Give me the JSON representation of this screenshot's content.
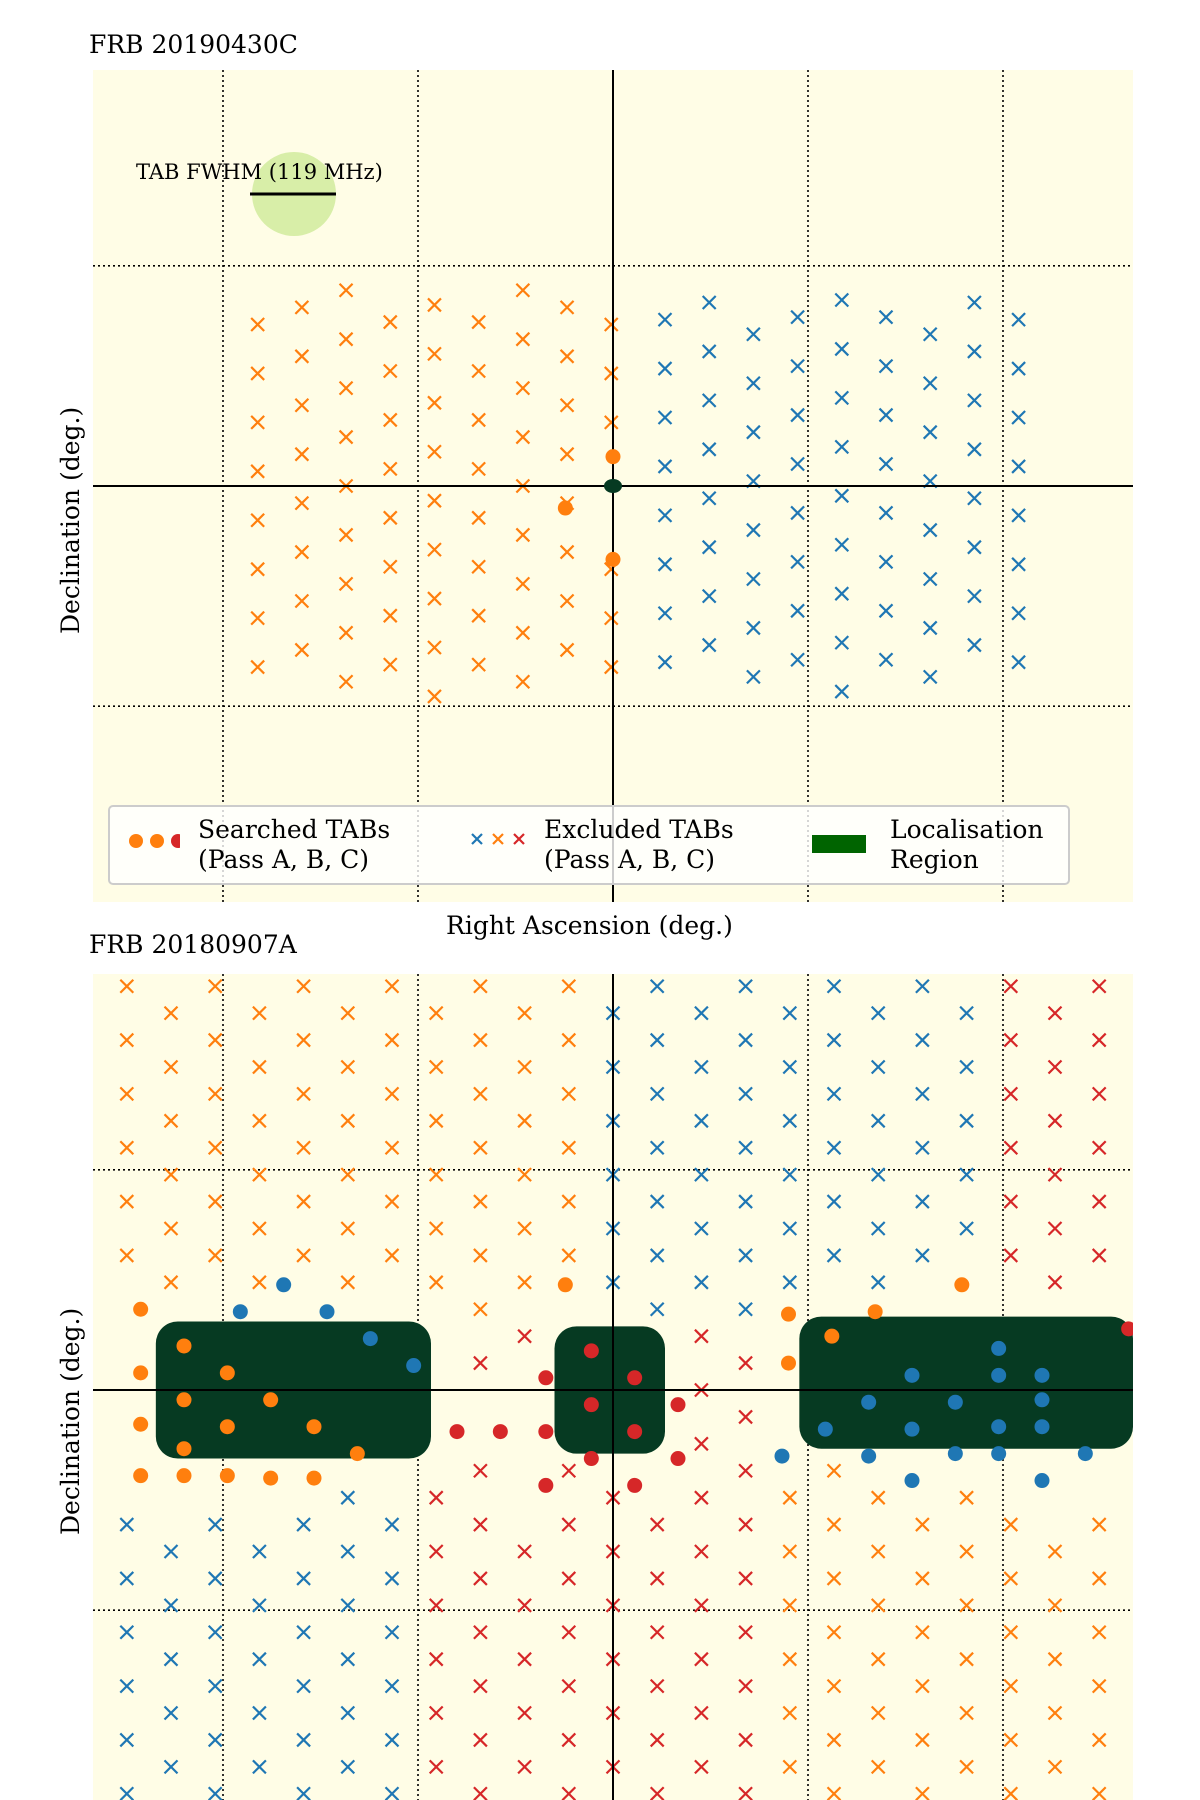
{
  "colors": {
    "background": "#fffde6",
    "blue": "#1f77b4",
    "orange": "#ff7f0e",
    "red": "#d62728",
    "localisation": "#063a22",
    "legend_patch": "#006400",
    "beam": "#d8eea8",
    "grid": "#000000"
  },
  "legend": {
    "searched_line1": "Searched TABs",
    "searched_line2": "(Pass A, B, C)",
    "excluded_line1": "Excluded TABs",
    "excluded_line2": "(Pass A, B, C)",
    "region_line1": "Localisation",
    "region_line2": "Region"
  },
  "chart_data": [
    {
      "type": "scatter",
      "title": "FRB 20190430C",
      "xlabel": "Right Ascension (deg.)",
      "ylabel": "Declination (deg.)",
      "ticks_labeled": false,
      "grid": "dotted",
      "legend_position": "bottom",
      "scale_bar_label": "TAB FWHM (119 MHz)",
      "xlim": [
        -12,
        12
      ],
      "ylim": [
        -8.5,
        8.5
      ],
      "origin": [
        0,
        0
      ],
      "searched_tabs": [
        {
          "pass": "A",
          "x": 0,
          "y": 0.6
        },
        {
          "pass": "A",
          "x": -1.1,
          "y": -0.45
        },
        {
          "pass": "A",
          "x": 0,
          "y": -1.5
        }
      ],
      "localisation_region": {
        "x": 0,
        "y": 0,
        "rx": 0.2,
        "ry": 0.18
      },
      "excluded_tabs": {
        "orange": {
          "x_range": [
            -8.2,
            -0.05
          ],
          "rows": 13
        },
        "blue": {
          "x_range": [
            1.2,
            9.4
          ],
          "rows": 13
        }
      }
    },
    {
      "type": "scatter",
      "title": "FRB 20180907A",
      "xlabel": "",
      "ylabel": "Declination (deg.)",
      "ticks_labeled": false,
      "grid": "dotted",
      "xlim": [
        -12,
        12
      ],
      "ylim": [
        -8.5,
        8.5
      ],
      "origin": [
        0,
        0
      ],
      "searched_tabs": [
        {
          "pass": "A",
          "x": -10.9,
          "y": 0.35
        },
        {
          "pass": "A",
          "x": -9.9,
          "y": 0.9
        },
        {
          "pass": "A",
          "x": -8.9,
          "y": 0.35
        },
        {
          "pass": "A",
          "x": -7.9,
          "y": -0.2
        },
        {
          "pass": "A",
          "x": -6.9,
          "y": -0.75
        },
        {
          "pass": "A",
          "x": -5.9,
          "y": -1.3
        },
        {
          "pass": "A",
          "x": -10.9,
          "y": -0.7
        },
        {
          "pass": "A",
          "x": -9.9,
          "y": -0.2
        },
        {
          "pass": "A",
          "x": -8.9,
          "y": -0.75
        },
        {
          "pass": "A",
          "x": -10.9,
          "y": -1.75
        },
        {
          "pass": "A",
          "x": -9.9,
          "y": -1.2
        },
        {
          "pass": "A",
          "x": -8.9,
          "y": -1.75
        },
        {
          "pass": "A",
          "x": -7.9,
          "y": -1.8
        },
        {
          "pass": "A",
          "x": -6.9,
          "y": -1.8
        },
        {
          "pass": "A",
          "x": -9.9,
          "y": -1.75
        },
        {
          "pass": "A",
          "x": -10.9,
          "y": 1.65
        },
        {
          "pass": "A",
          "x": -1.1,
          "y": 2.15
        },
        {
          "pass": "A",
          "x": 4.05,
          "y": 1.55
        },
        {
          "pass": "A",
          "x": 6.05,
          "y": 1.6
        },
        {
          "pass": "A",
          "x": 8.05,
          "y": 2.15
        },
        {
          "pass": "A",
          "x": 5.05,
          "y": 1.1
        },
        {
          "pass": "A",
          "x": 4.05,
          "y": 0.55
        },
        {
          "pass": "B",
          "x": -7.6,
          "y": 2.15
        },
        {
          "pass": "B",
          "x": -6.6,
          "y": 1.6
        },
        {
          "pass": "B",
          "x": -5.6,
          "y": 1.05
        },
        {
          "pass": "B",
          "x": -4.6,
          "y": 0.5
        },
        {
          "pass": "B",
          "x": -8.6,
          "y": 1.6
        },
        {
          "pass": "B",
          "x": 9.9,
          "y": -0.2
        },
        {
          "pass": "B",
          "x": 8.9,
          "y": 0.3
        },
        {
          "pass": "B",
          "x": 7.9,
          "y": -0.25
        },
        {
          "pass": "B",
          "x": 6.9,
          "y": 0.3
        },
        {
          "pass": "B",
          "x": 5.9,
          "y": -0.25
        },
        {
          "pass": "B",
          "x": 8.9,
          "y": -0.75
        },
        {
          "pass": "B",
          "x": 7.9,
          "y": -1.3
        },
        {
          "pass": "B",
          "x": 6.9,
          "y": -0.8
        },
        {
          "pass": "B",
          "x": 5.9,
          "y": -1.35
        },
        {
          "pass": "B",
          "x": 4.9,
          "y": -0.8
        },
        {
          "pass": "B",
          "x": 3.9,
          "y": -1.35
        },
        {
          "pass": "B",
          "x": 6.9,
          "y": -1.85
        },
        {
          "pass": "B",
          "x": 8.9,
          "y": 0.85
        },
        {
          "pass": "B",
          "x": 9.9,
          "y": 0.3
        },
        {
          "pass": "B",
          "x": 8.9,
          "y": -1.3
        },
        {
          "pass": "B",
          "x": 9.9,
          "y": -0.75
        },
        {
          "pass": "B",
          "x": 10.9,
          "y": -1.3
        },
        {
          "pass": "B",
          "x": 9.9,
          "y": -1.85
        },
        {
          "pass": "C",
          "x": -1.55,
          "y": 0.25
        },
        {
          "pass": "C",
          "x": -0.5,
          "y": 0.8
        },
        {
          "pass": "C",
          "x": 0.5,
          "y": 0.25
        },
        {
          "pass": "C",
          "x": -0.5,
          "y": -0.3
        },
        {
          "pass": "C",
          "x": 0.5,
          "y": -0.85
        },
        {
          "pass": "C",
          "x": 1.5,
          "y": -0.3
        },
        {
          "pass": "C",
          "x": -1.55,
          "y": -0.85
        },
        {
          "pass": "C",
          "x": -0.5,
          "y": -1.4
        },
        {
          "pass": "C",
          "x": 0.5,
          "y": -1.95
        },
        {
          "pass": "C",
          "x": -1.55,
          "y": -1.95
        },
        {
          "pass": "C",
          "x": -3.6,
          "y": -0.85
        },
        {
          "pass": "C",
          "x": -2.6,
          "y": -0.85
        },
        {
          "pass": "C",
          "x": 1.5,
          "y": -1.4
        },
        {
          "pass": "C",
          "x": 11.9,
          "y": 1.25
        }
      ],
      "localisation_regions": [
        {
          "x_range": [
            -10.55,
            -4.2
          ],
          "y_range": [
            -1.4,
            1.4
          ]
        },
        {
          "x_range": [
            -1.35,
            1.2
          ],
          "y_range": [
            -1.3,
            1.3
          ]
        },
        {
          "x_range": [
            4.3,
            12
          ],
          "y_range": [
            -1.2,
            1.5
          ]
        }
      ],
      "excluded_tabs": {
        "orange_region": "upper-left and lower-right",
        "blue_region": "upper-center-right and lower-left",
        "red_region": "right edge and lower-center"
      }
    }
  ]
}
